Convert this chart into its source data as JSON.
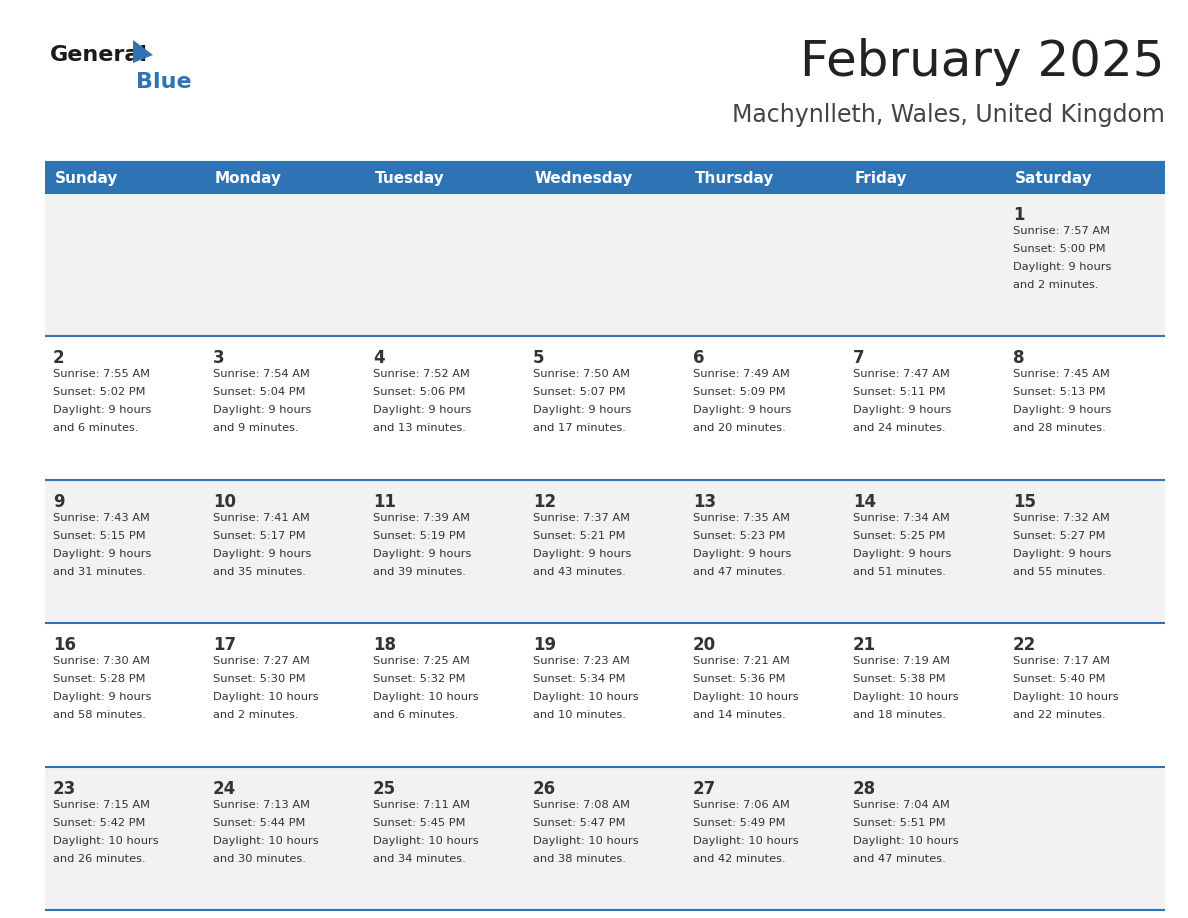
{
  "title": "February 2025",
  "subtitle": "Machynlleth, Wales, United Kingdom",
  "header_bg": "#2E74B5",
  "header_text_color": "#FFFFFF",
  "weekdays": [
    "Sunday",
    "Monday",
    "Tuesday",
    "Wednesday",
    "Thursday",
    "Friday",
    "Saturday"
  ],
  "row_bg_even": "#F2F2F2",
  "row_bg_odd": "#FFFFFF",
  "separator_color": "#2E74B5",
  "day_number_color": "#333333",
  "cell_text_color": "#333333",
  "title_color": "#222222",
  "subtitle_color": "#444444",
  "calendar": [
    [
      null,
      null,
      null,
      null,
      null,
      null,
      {
        "day": 1,
        "sunrise": "7:57 AM",
        "sunset": "5:00 PM",
        "daylight": "9 hours\nand 2 minutes."
      }
    ],
    [
      {
        "day": 2,
        "sunrise": "7:55 AM",
        "sunset": "5:02 PM",
        "daylight": "9 hours\nand 6 minutes."
      },
      {
        "day": 3,
        "sunrise": "7:54 AM",
        "sunset": "5:04 PM",
        "daylight": "9 hours\nand 9 minutes."
      },
      {
        "day": 4,
        "sunrise": "7:52 AM",
        "sunset": "5:06 PM",
        "daylight": "9 hours\nand 13 minutes."
      },
      {
        "day": 5,
        "sunrise": "7:50 AM",
        "sunset": "5:07 PM",
        "daylight": "9 hours\nand 17 minutes."
      },
      {
        "day": 6,
        "sunrise": "7:49 AM",
        "sunset": "5:09 PM",
        "daylight": "9 hours\nand 20 minutes."
      },
      {
        "day": 7,
        "sunrise": "7:47 AM",
        "sunset": "5:11 PM",
        "daylight": "9 hours\nand 24 minutes."
      },
      {
        "day": 8,
        "sunrise": "7:45 AM",
        "sunset": "5:13 PM",
        "daylight": "9 hours\nand 28 minutes."
      }
    ],
    [
      {
        "day": 9,
        "sunrise": "7:43 AM",
        "sunset": "5:15 PM",
        "daylight": "9 hours\nand 31 minutes."
      },
      {
        "day": 10,
        "sunrise": "7:41 AM",
        "sunset": "5:17 PM",
        "daylight": "9 hours\nand 35 minutes."
      },
      {
        "day": 11,
        "sunrise": "7:39 AM",
        "sunset": "5:19 PM",
        "daylight": "9 hours\nand 39 minutes."
      },
      {
        "day": 12,
        "sunrise": "7:37 AM",
        "sunset": "5:21 PM",
        "daylight": "9 hours\nand 43 minutes."
      },
      {
        "day": 13,
        "sunrise": "7:35 AM",
        "sunset": "5:23 PM",
        "daylight": "9 hours\nand 47 minutes."
      },
      {
        "day": 14,
        "sunrise": "7:34 AM",
        "sunset": "5:25 PM",
        "daylight": "9 hours\nand 51 minutes."
      },
      {
        "day": 15,
        "sunrise": "7:32 AM",
        "sunset": "5:27 PM",
        "daylight": "9 hours\nand 55 minutes."
      }
    ],
    [
      {
        "day": 16,
        "sunrise": "7:30 AM",
        "sunset": "5:28 PM",
        "daylight": "9 hours\nand 58 minutes."
      },
      {
        "day": 17,
        "sunrise": "7:27 AM",
        "sunset": "5:30 PM",
        "daylight": "10 hours\nand 2 minutes."
      },
      {
        "day": 18,
        "sunrise": "7:25 AM",
        "sunset": "5:32 PM",
        "daylight": "10 hours\nand 6 minutes."
      },
      {
        "day": 19,
        "sunrise": "7:23 AM",
        "sunset": "5:34 PM",
        "daylight": "10 hours\nand 10 minutes."
      },
      {
        "day": 20,
        "sunrise": "7:21 AM",
        "sunset": "5:36 PM",
        "daylight": "10 hours\nand 14 minutes."
      },
      {
        "day": 21,
        "sunrise": "7:19 AM",
        "sunset": "5:38 PM",
        "daylight": "10 hours\nand 18 minutes."
      },
      {
        "day": 22,
        "sunrise": "7:17 AM",
        "sunset": "5:40 PM",
        "daylight": "10 hours\nand 22 minutes."
      }
    ],
    [
      {
        "day": 23,
        "sunrise": "7:15 AM",
        "sunset": "5:42 PM",
        "daylight": "10 hours\nand 26 minutes."
      },
      {
        "day": 24,
        "sunrise": "7:13 AM",
        "sunset": "5:44 PM",
        "daylight": "10 hours\nand 30 minutes."
      },
      {
        "day": 25,
        "sunrise": "7:11 AM",
        "sunset": "5:45 PM",
        "daylight": "10 hours\nand 34 minutes."
      },
      {
        "day": 26,
        "sunrise": "7:08 AM",
        "sunset": "5:47 PM",
        "daylight": "10 hours\nand 38 minutes."
      },
      {
        "day": 27,
        "sunrise": "7:06 AM",
        "sunset": "5:49 PM",
        "daylight": "10 hours\nand 42 minutes."
      },
      {
        "day": 28,
        "sunrise": "7:04 AM",
        "sunset": "5:51 PM",
        "daylight": "10 hours\nand 47 minutes."
      },
      null
    ]
  ]
}
